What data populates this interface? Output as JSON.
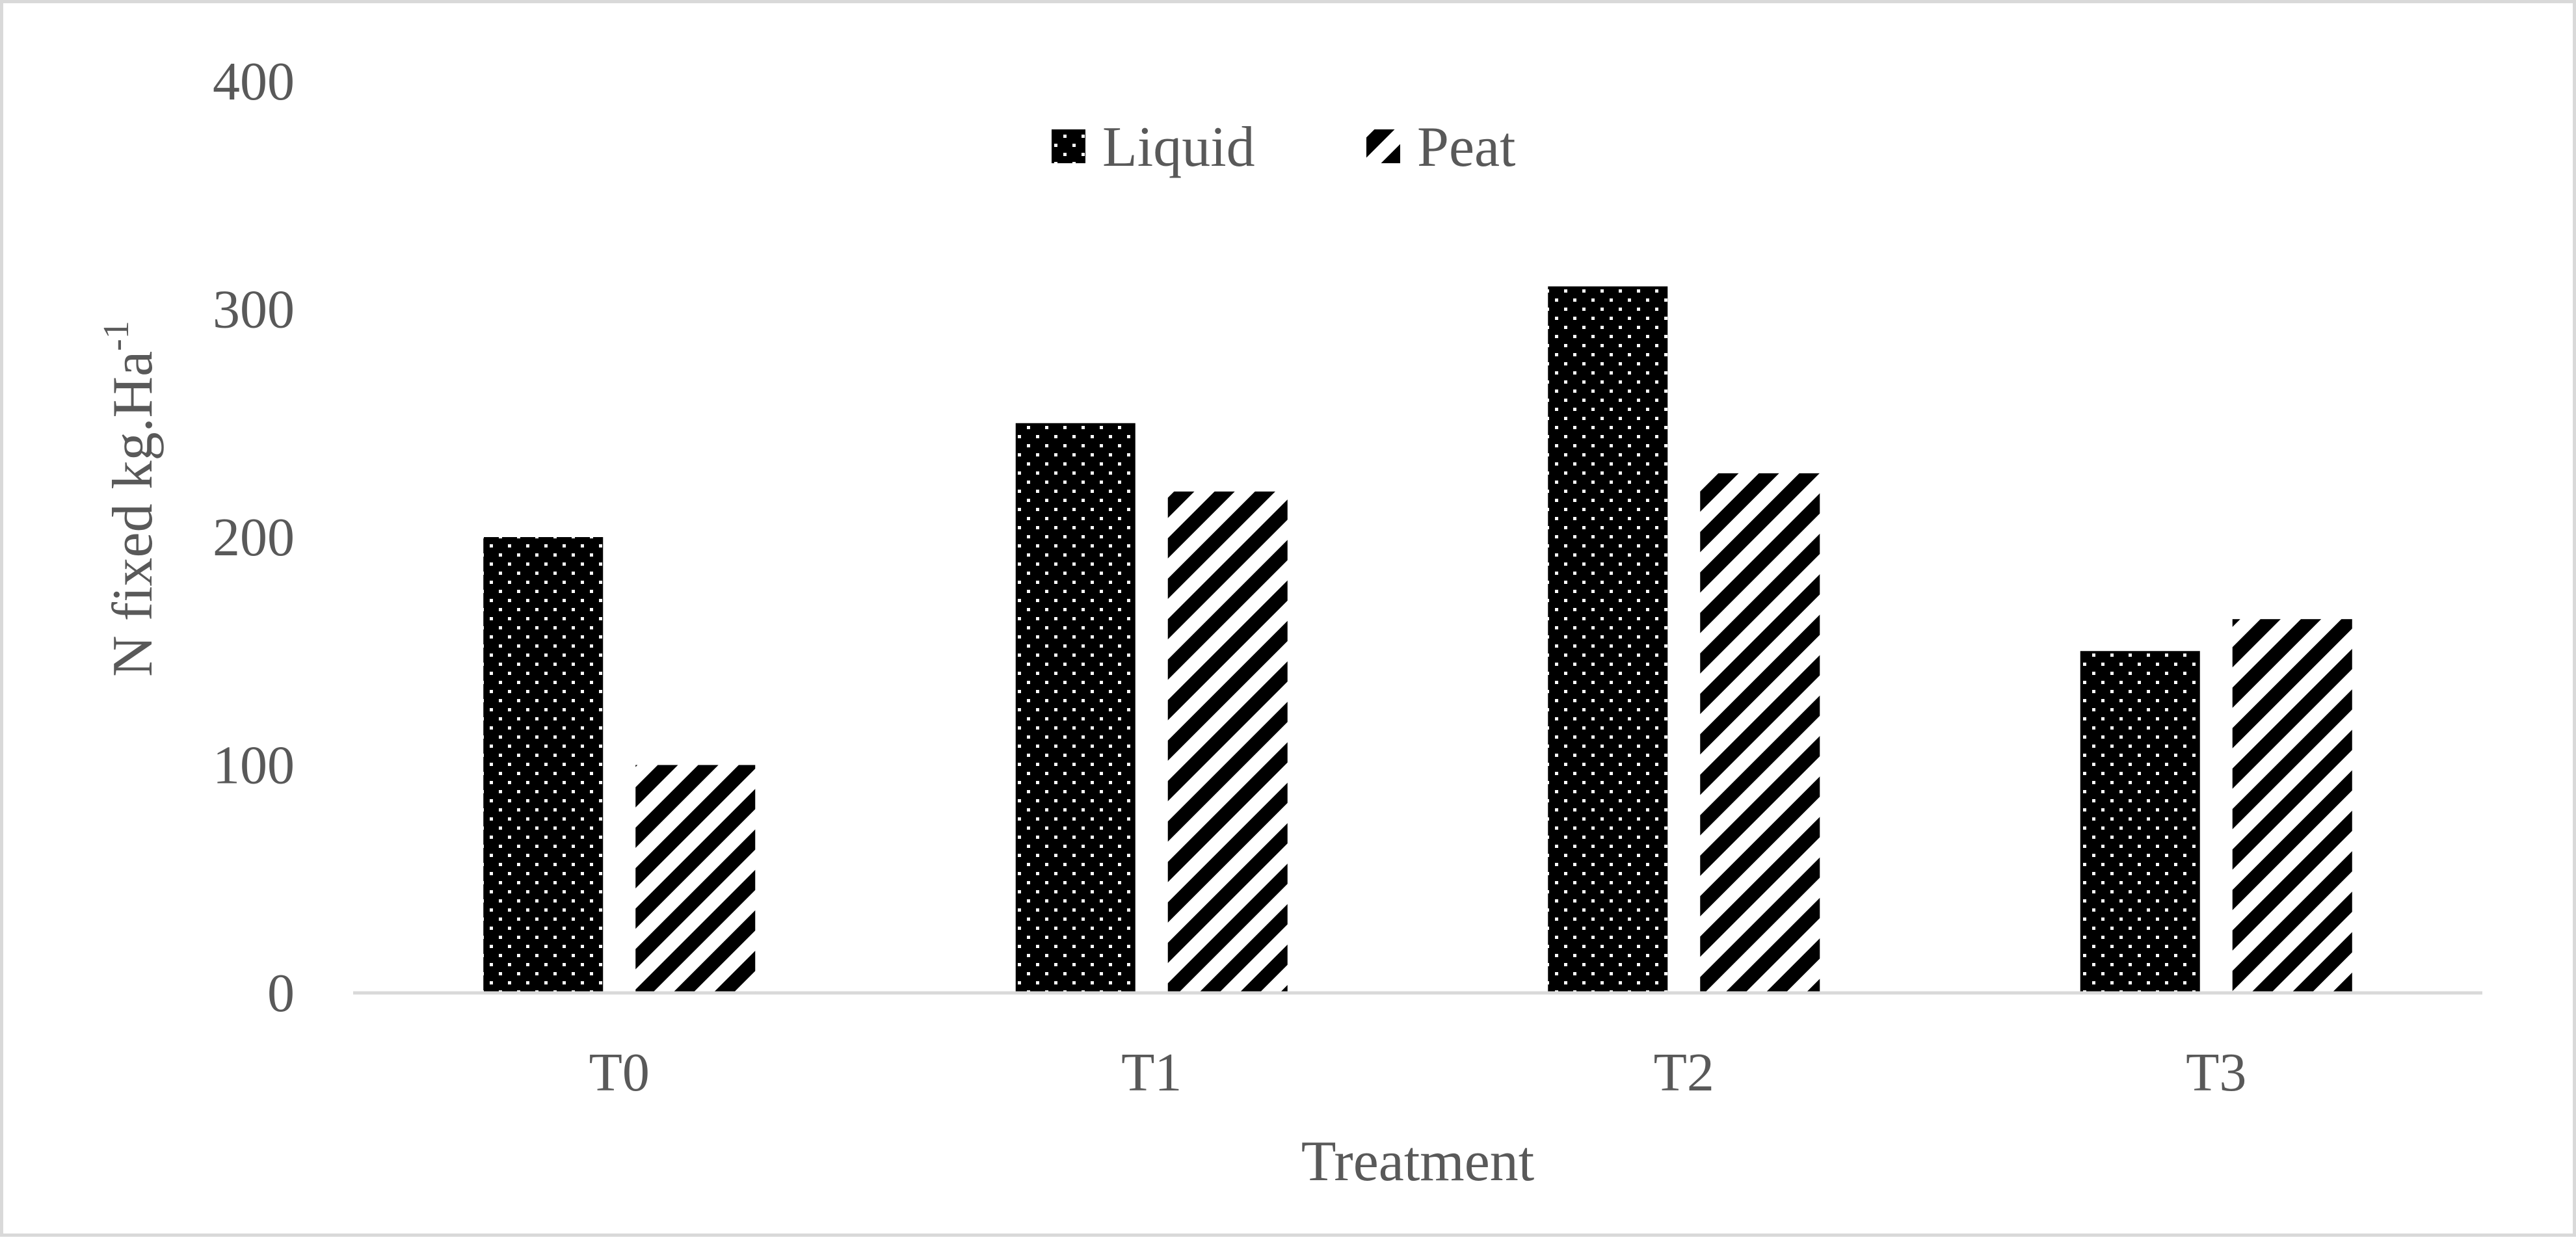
{
  "chart_data": {
    "type": "bar",
    "categories": [
      "T0",
      "T1",
      "T2",
      "T3"
    ],
    "series": [
      {
        "name": "Liquid",
        "values": [
          200,
          250,
          310,
          150
        ],
        "pattern": "dots",
        "color": "#000000"
      },
      {
        "name": "Peat",
        "values": [
          100,
          220,
          228,
          164
        ],
        "pattern": "diagonal-stripes",
        "color": "#000000"
      }
    ],
    "xlabel": "Treatment",
    "ylabel": "N fixed kg.Ha",
    "ylabel_superscript": "-1",
    "yticks": [
      "0",
      "100",
      "200",
      "300",
      "400"
    ],
    "ylim": [
      0,
      400
    ],
    "grid": false,
    "legend_position": "top-center"
  }
}
